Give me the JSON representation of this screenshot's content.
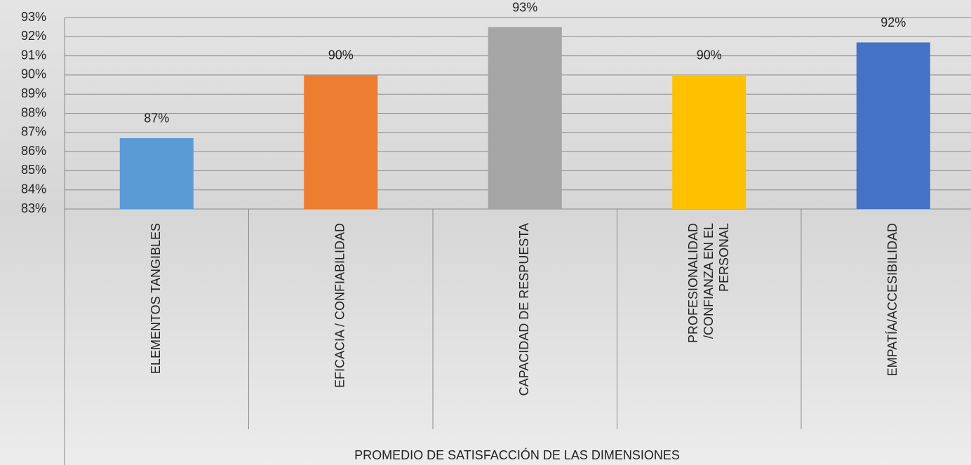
{
  "chart_data": {
    "type": "bar",
    "x_label": "PROMEDIO DE SATISFACCIÓN DE LAS DIMENSIONES",
    "categories": [
      "ELEMENTOS TANGIBLES",
      "EFICACIA / CONFIABILIDAD",
      "CAPACIDAD DE RESPUESTA",
      "PROFESIONALIDAD /CONFIANZA EN EL PERSONAL",
      "EMPATÍA/ACCESIBILIDAD"
    ],
    "values": [
      86.7,
      90.0,
      92.5,
      90.0,
      91.7
    ],
    "value_labels": [
      "87%",
      "90%",
      "93%",
      "90%",
      "92%"
    ],
    "colors": [
      "#5b9bd5",
      "#ed7d31",
      "#a5a5a5",
      "#ffc000",
      "#4472c4"
    ],
    "ylim": [
      83,
      93
    ],
    "yticks": [
      {
        "value": 83,
        "label": "83%"
      },
      {
        "value": 84,
        "label": "84%"
      },
      {
        "value": 85,
        "label": "85%"
      },
      {
        "value": 86,
        "label": "86%"
      },
      {
        "value": 87,
        "label": "87%"
      },
      {
        "value": 88,
        "label": "88%"
      },
      {
        "value": 89,
        "label": "89%"
      },
      {
        "value": 90,
        "label": "90%"
      },
      {
        "value": 91,
        "label": "91%"
      },
      {
        "value": 92,
        "label": "92%"
      },
      {
        "value": 93,
        "label": "93%"
      }
    ],
    "grid": true
  }
}
